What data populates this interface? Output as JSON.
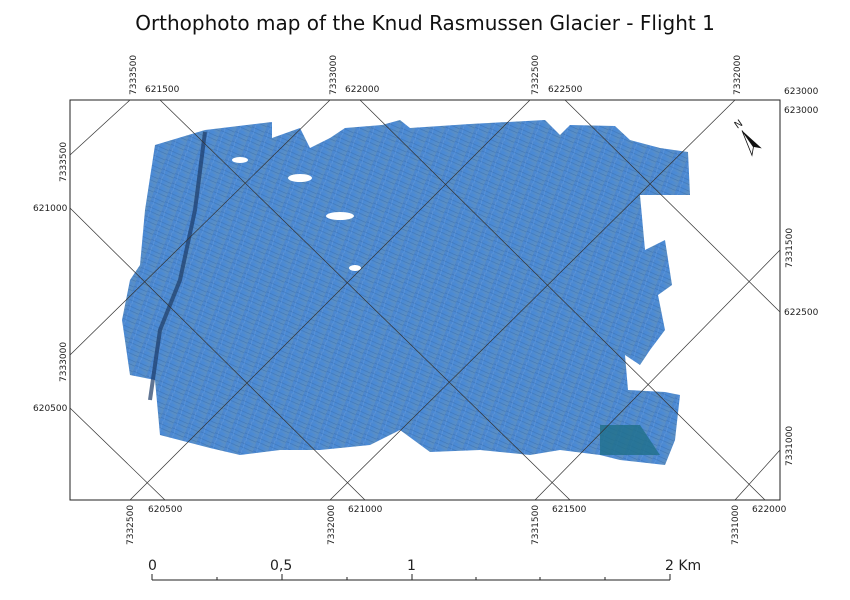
{
  "title": "Orthophoto map of the Knud Rasmussen Glacier - Flight 1",
  "grid_labels": {
    "top": [
      "7333500",
      "621500",
      "7333000",
      "622000",
      "7332500",
      "622500",
      "7332000",
      "623000"
    ],
    "left": [
      "7333500",
      "621000",
      "7333000",
      "620500"
    ],
    "bottom": [
      "7332500",
      "620500",
      "7332000",
      "621000",
      "7331500",
      "621500",
      "7331000",
      "622000"
    ],
    "right": [
      "623000",
      "7331500",
      "622500",
      "7331000"
    ]
  },
  "north_arrow": "N",
  "scale_bar": {
    "labels": [
      "0",
      "0,5",
      "1",
      "2 Km"
    ]
  }
}
